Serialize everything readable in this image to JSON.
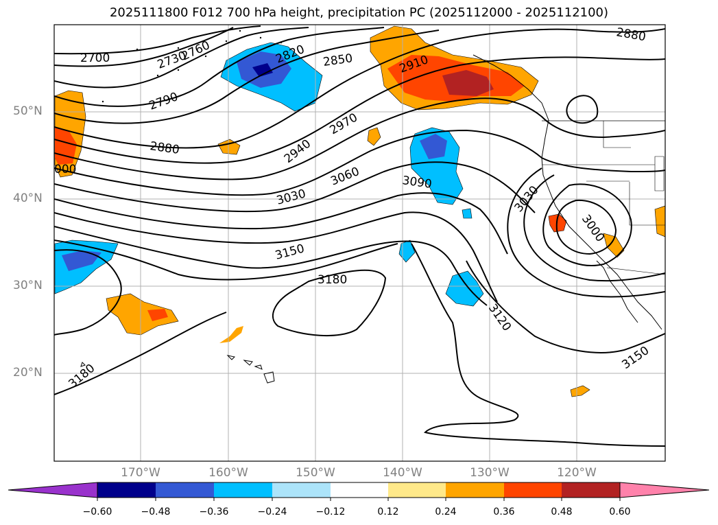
{
  "title": "2025111800 F012 700 hPa height, precipitation PC (2025112000 - 2025112100)",
  "map": {
    "projection": "plate carree",
    "lon_range": [
      "180°",
      "110°W"
    ],
    "lat_range": [
      "10°N",
      "60°N"
    ],
    "grid": true,
    "lat_labels": [
      "50°N",
      "40°N",
      "30°N",
      "20°N"
    ],
    "lon_labels": [
      "170°W",
      "160°W",
      "150°W",
      "140°W",
      "130°W",
      "120°W"
    ]
  },
  "contours": {
    "field": "700 hPa height",
    "color": "#000000",
    "labels": [
      "2700",
      "2730",
      "2760",
      "2820",
      "2850",
      "2880",
      "2910",
      "2790",
      "2880",
      "2970",
      "2940",
      "3060",
      "3030",
      "3090",
      "3030",
      "3000",
      "3150",
      "3180",
      "3120",
      "3150",
      "3180",
      "000"
    ]
  },
  "colorbar": {
    "ticks": [
      "−0.60",
      "−0.48",
      "−0.36",
      "−0.24",
      "−0.12",
      "0.12",
      "0.24",
      "0.36",
      "0.48",
      "0.60"
    ],
    "colors": [
      "#9932cc",
      "#00008b",
      "#3358d4",
      "#00bfff",
      "#ace4fa",
      "#ffffff",
      "#ffe98a",
      "#ffa500",
      "#ff4500",
      "#b22222",
      "#ff82ab"
    ],
    "extend": "both"
  }
}
